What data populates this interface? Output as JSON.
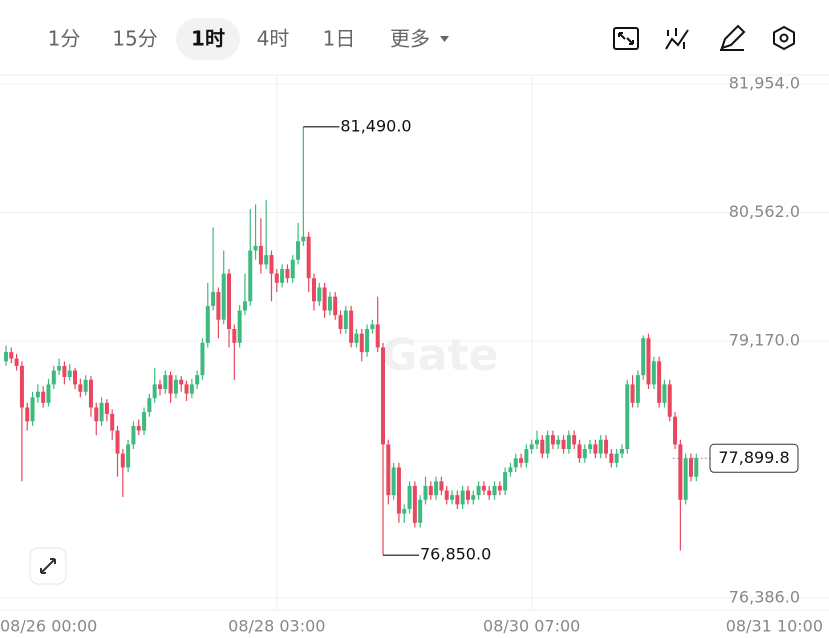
{
  "tabs": [
    "1分",
    "15分",
    "1时",
    "4时",
    "1日",
    "更多"
  ],
  "chart_data": {
    "type": "candlestick",
    "watermark": "Gate",
    "up_color": "#3dba7e",
    "down_color": "#e8475f",
    "ylim": [
      76386,
      81954
    ],
    "yticks": [
      {
        "value": 81954,
        "label": "81,954.0"
      },
      {
        "value": 80562,
        "label": "80,562.0"
      },
      {
        "value": 79170,
        "label": "79,170.0"
      },
      {
        "value": 76386,
        "label": "76,386.0"
      }
    ],
    "categories": [
      "08/26 00:00",
      null,
      null,
      null,
      null,
      null,
      null,
      null,
      null,
      null,
      null,
      null,
      null,
      null,
      null,
      null,
      null,
      null,
      null,
      null,
      null,
      null,
      null,
      null,
      null,
      null,
      null,
      null,
      null,
      null,
      null,
      null,
      null,
      null,
      null,
      null,
      null,
      null,
      null,
      null,
      null,
      null,
      null,
      null,
      null,
      null,
      null,
      null,
      null,
      null,
      null,
      "08/28 03:00",
      null,
      null,
      null,
      null,
      null,
      null,
      null,
      null,
      null,
      null,
      null,
      null,
      null,
      null,
      null,
      null,
      null,
      null,
      null,
      null,
      null,
      null,
      null,
      null,
      null,
      null,
      null,
      null,
      null,
      null,
      null,
      null,
      null,
      null,
      null,
      null,
      null,
      null,
      null,
      null,
      null,
      null,
      null,
      null,
      null,
      null,
      null,
      "08/30 07:00",
      null,
      null,
      null,
      null,
      null,
      null,
      null,
      null,
      null,
      null,
      null,
      null,
      null,
      null,
      null,
      null,
      null,
      null,
      null,
      null,
      null,
      null,
      null,
      null,
      null,
      "08/31 10:00"
    ],
    "ohlc": [
      [
        78950,
        79120,
        78900,
        79050
      ],
      [
        79050,
        79100,
        78930,
        78980
      ],
      [
        78980,
        79030,
        78850,
        78900
      ],
      [
        78900,
        78950,
        77650,
        78450
      ],
      [
        78450,
        78500,
        78200,
        78300
      ],
      [
        78300,
        78620,
        78250,
        78560
      ],
      [
        78560,
        78700,
        78500,
        78620
      ],
      [
        78620,
        78680,
        78450,
        78500
      ],
      [
        78500,
        78760,
        78460,
        78700
      ],
      [
        78700,
        78900,
        78650,
        78850
      ],
      [
        78850,
        78980,
        78800,
        78900
      ],
      [
        78900,
        78950,
        78700,
        78780
      ],
      [
        78780,
        78920,
        78740,
        78850
      ],
      [
        78850,
        78880,
        78650,
        78700
      ],
      [
        78700,
        78760,
        78560,
        78620
      ],
      [
        78620,
        78800,
        78580,
        78750
      ],
      [
        78750,
        78790,
        78350,
        78450
      ],
      [
        78450,
        78500,
        78150,
        78300
      ],
      [
        78300,
        78560,
        78250,
        78500
      ],
      [
        78500,
        78540,
        78300,
        78380
      ],
      [
        78380,
        78430,
        78100,
        78200
      ],
      [
        78200,
        78250,
        77700,
        77950
      ],
      [
        77950,
        78000,
        77480,
        77800
      ],
      [
        77800,
        78100,
        77750,
        78050
      ],
      [
        78050,
        78300,
        78000,
        78250
      ],
      [
        78250,
        78320,
        78150,
        78200
      ],
      [
        78200,
        78450,
        78150,
        78400
      ],
      [
        78400,
        78600,
        78350,
        78550
      ],
      [
        78550,
        78880,
        78500,
        78700
      ],
      [
        78700,
        78750,
        78580,
        78650
      ],
      [
        78650,
        78850,
        78600,
        78800
      ],
      [
        78800,
        78840,
        78500,
        78600
      ],
      [
        78600,
        78800,
        78550,
        78750
      ],
      [
        78750,
        78790,
        78620,
        78700
      ],
      [
        78700,
        78740,
        78520,
        78600
      ],
      [
        78600,
        78760,
        78550,
        78700
      ],
      [
        78700,
        78850,
        78650,
        78800
      ],
      [
        78800,
        79200,
        78750,
        79150
      ],
      [
        79150,
        79800,
        79100,
        79550
      ],
      [
        79550,
        80400,
        79500,
        79700
      ],
      [
        79700,
        79750,
        79200,
        79400
      ],
      [
        79400,
        80150,
        79350,
        79900
      ],
      [
        79900,
        79950,
        79100,
        79300
      ],
      [
        79300,
        79350,
        78750,
        79150
      ],
      [
        79150,
        79560,
        79100,
        79500
      ],
      [
        79500,
        79900,
        79450,
        79600
      ],
      [
        79600,
        80600,
        79550,
        80150
      ],
      [
        80150,
        80650,
        80050,
        80200
      ],
      [
        80200,
        80500,
        79900,
        80000
      ],
      [
        80000,
        80700,
        79950,
        80100
      ],
      [
        80100,
        80150,
        79600,
        79900
      ],
      [
        79900,
        79950,
        79700,
        79800
      ],
      [
        79800,
        80000,
        79750,
        79950
      ],
      [
        79950,
        80000,
        79800,
        79850
      ],
      [
        79850,
        80100,
        79800,
        80050
      ],
      [
        80050,
        80450,
        80000,
        80250
      ],
      [
        80250,
        81490,
        80200,
        80300
      ],
      [
        80300,
        80350,
        79700,
        79850
      ],
      [
        79850,
        79900,
        79500,
        79600
      ],
      [
        79600,
        79800,
        79550,
        79750
      ],
      [
        79750,
        79800,
        79420,
        79500
      ],
      [
        79500,
        79700,
        79450,
        79650
      ],
      [
        79650,
        79700,
        79400,
        79450
      ],
      [
        79450,
        79500,
        79250,
        79300
      ],
      [
        79300,
        79550,
        79250,
        79500
      ],
      [
        79500,
        79550,
        79100,
        79150
      ],
      [
        79150,
        79300,
        79100,
        79250
      ],
      [
        79250,
        79300,
        78950,
        79050
      ],
      [
        79050,
        79350,
        79000,
        79300
      ],
      [
        79300,
        79400,
        79250,
        79350
      ],
      [
        79350,
        79650,
        79050,
        79100
      ],
      [
        79100,
        79150,
        76850,
        78050
      ],
      [
        78050,
        78100,
        77400,
        77500
      ],
      [
        77500,
        77850,
        77450,
        77800
      ],
      [
        77800,
        77850,
        77200,
        77300
      ],
      [
        77300,
        77400,
        77200,
        77350
      ],
      [
        77350,
        77650,
        77300,
        77600
      ],
      [
        77600,
        77650,
        77150,
        77200
      ],
      [
        77200,
        77500,
        77150,
        77450
      ],
      [
        77450,
        77700,
        77400,
        77600
      ],
      [
        77600,
        77650,
        77450,
        77500
      ],
      [
        77500,
        77700,
        77450,
        77650
      ],
      [
        77650,
        77700,
        77500,
        77550
      ],
      [
        77550,
        77600,
        77400,
        77450
      ],
      [
        77450,
        77550,
        77400,
        77500
      ],
      [
        77500,
        77550,
        77350,
        77400
      ],
      [
        77400,
        77600,
        77350,
        77550
      ],
      [
        77550,
        77600,
        77400,
        77450
      ],
      [
        77450,
        77550,
        77400,
        77500
      ],
      [
        77500,
        77650,
        77450,
        77600
      ],
      [
        77600,
        77650,
        77500,
        77550
      ],
      [
        77550,
        77600,
        77450,
        77500
      ],
      [
        77500,
        77650,
        77450,
        77600
      ],
      [
        77600,
        77650,
        77500,
        77550
      ],
      [
        77550,
        77800,
        77500,
        77750
      ],
      [
        77750,
        77850,
        77700,
        77800
      ],
      [
        77800,
        77950,
        77750,
        77900
      ],
      [
        77900,
        77950,
        77800,
        77850
      ],
      [
        77850,
        78050,
        77800,
        78000
      ],
      [
        78000,
        78100,
        77950,
        78050
      ],
      [
        78050,
        78200,
        78000,
        78100
      ],
      [
        78100,
        78150,
        77900,
        77950
      ],
      [
        77950,
        78200,
        77900,
        78150
      ],
      [
        78150,
        78200,
        78000,
        78050
      ],
      [
        78050,
        78150,
        78000,
        78100
      ],
      [
        78100,
        78150,
        77950,
        78000
      ],
      [
        78000,
        78200,
        77950,
        78150
      ],
      [
        78150,
        78200,
        78000,
        78050
      ],
      [
        78050,
        78100,
        77850,
        77900
      ],
      [
        77900,
        78050,
        77850,
        78000
      ],
      [
        78000,
        78100,
        77950,
        78050
      ],
      [
        78050,
        78100,
        77900,
        77950
      ],
      [
        77950,
        78150,
        77900,
        78100
      ],
      [
        78100,
        78150,
        77900,
        77950
      ],
      [
        77950,
        78000,
        77800,
        77850
      ],
      [
        77850,
        78000,
        77800,
        77950
      ],
      [
        77950,
        78050,
        77900,
        78000
      ],
      [
        78000,
        78750,
        77950,
        78700
      ],
      [
        78700,
        78800,
        78450,
        78500
      ],
      [
        78500,
        78850,
        78450,
        78800
      ],
      [
        78800,
        79230,
        78750,
        79200
      ],
      [
        79200,
        79250,
        78650,
        78700
      ],
      [
        78700,
        79000,
        78650,
        78950
      ],
      [
        78950,
        79000,
        78450,
        78500
      ],
      [
        78500,
        78750,
        78450,
        78700
      ],
      [
        78700,
        78750,
        78300,
        78350
      ],
      [
        78350,
        78400,
        78000,
        78050
      ],
      [
        78050,
        78100,
        76900,
        77450
      ],
      [
        77450,
        77950,
        77400,
        77900
      ],
      [
        77900,
        77950,
        77650,
        77700
      ],
      [
        77700,
        77950,
        77650,
        77899.8
      ]
    ],
    "high_label": {
      "value": 81490,
      "label": "81,490.0"
    },
    "low_label": {
      "value": 76850,
      "label": "76,850.0"
    },
    "last_label": {
      "value": 77899.8,
      "label": "77,899.8"
    }
  }
}
